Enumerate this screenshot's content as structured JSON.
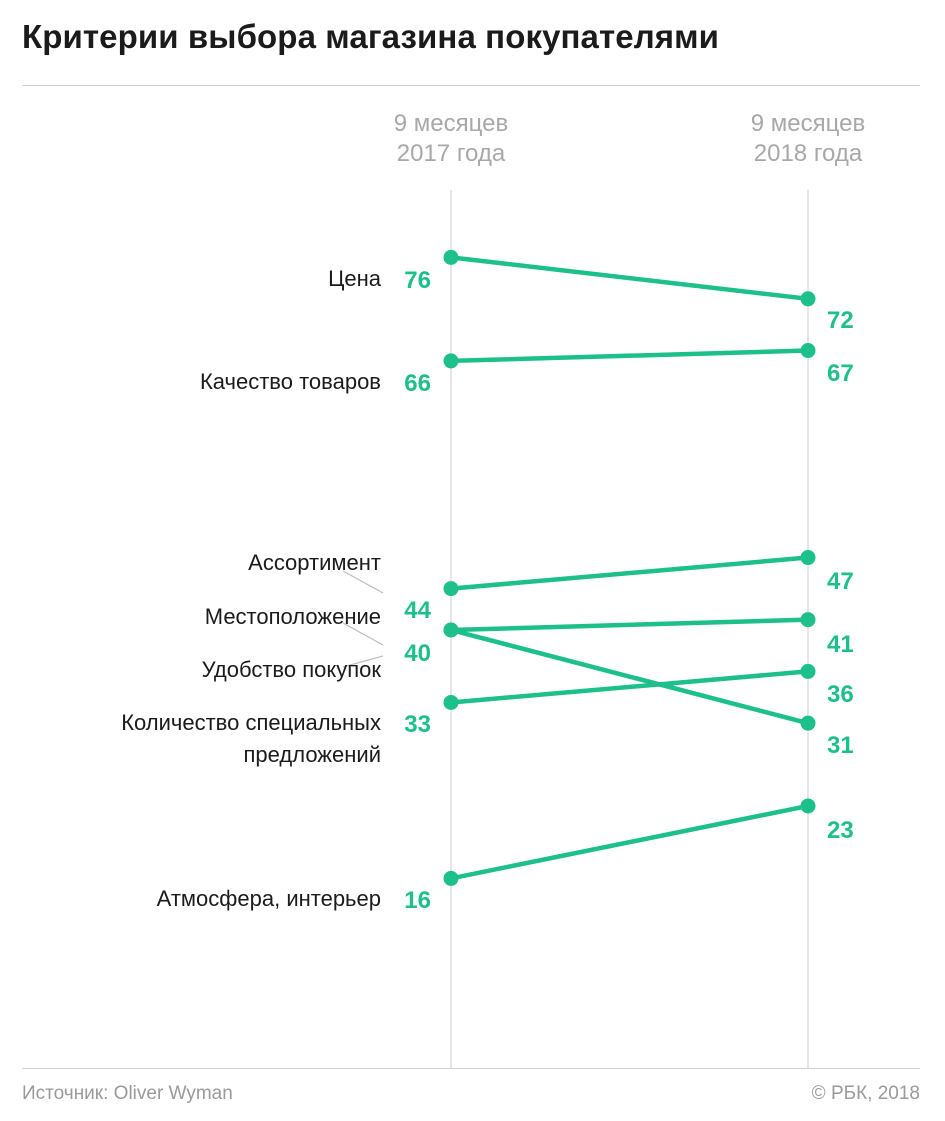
{
  "title": "Критерии выбора магазина покупателями",
  "footer": {
    "source": "Источник: Oliver Wyman",
    "copyright": "© РБК, 2018"
  },
  "colors": {
    "accent": "#1dbf8a",
    "title": "#1b1b1b",
    "muted": "#a8a8a8",
    "axis": "#d9d9d9",
    "leader": "#bdbdbd"
  },
  "chart_data": {
    "type": "line",
    "subtype": "slope",
    "title": "Критерии выбора магазина покупателями",
    "x": [
      "9 месяцев 2017 года",
      "9 месяцев 2018 года"
    ],
    "x_labels": [
      [
        "9 месяцев",
        "2017 года"
      ],
      [
        "9 месяцев",
        "2018 года"
      ]
    ],
    "ylim": [
      0,
      90
    ],
    "grid": false,
    "legend": "none",
    "left_value_labels": [
      "76",
      "66",
      "44",
      "40",
      "33",
      "16"
    ],
    "series": [
      {
        "name": "Цена",
        "label_lines": [
          "Цена"
        ],
        "values": [
          76,
          72
        ]
      },
      {
        "name": "Качество товаров",
        "label_lines": [
          "Качество товаров"
        ],
        "values": [
          66,
          67
        ]
      },
      {
        "name": "Ассортимент",
        "label_lines": [
          "Ассортимент"
        ],
        "values": [
          44,
          47
        ]
      },
      {
        "name": "Местоположение",
        "label_lines": [
          "Местоположение"
        ],
        "values": [
          40,
          31
        ]
      },
      {
        "name": "Удобство покупок",
        "label_lines": [
          "Удобство покупок"
        ],
        "values": [
          40,
          41
        ]
      },
      {
        "name": "Количество специальных предложений",
        "label_lines": [
          "Количество специальных",
          "предложений"
        ],
        "values": [
          33,
          36
        ]
      },
      {
        "name": "Атмосфера, интерьер",
        "label_lines": [
          "Атмосфера, интерьер"
        ],
        "values": [
          16,
          23
        ]
      }
    ]
  }
}
